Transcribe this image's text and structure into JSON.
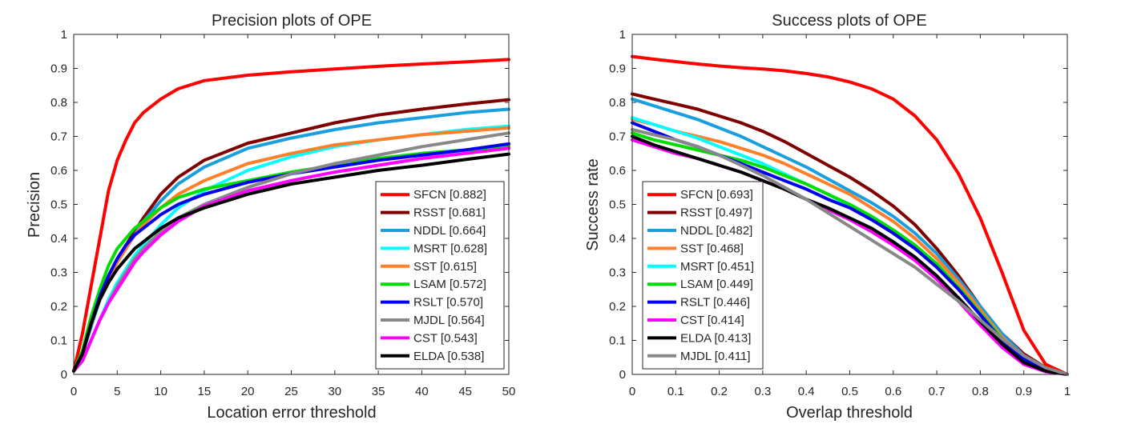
{
  "chart_data": [
    {
      "type": "line",
      "title": "Precision plots of OPE",
      "xlabel": "Location error threshold",
      "ylabel": "Precision",
      "xlim": [
        0,
        50
      ],
      "ylim": [
        0,
        1
      ],
      "xticks": [
        0,
        5,
        10,
        15,
        20,
        25,
        30,
        35,
        40,
        45,
        50
      ],
      "yticks": [
        0,
        0.1,
        0.2,
        0.3,
        0.4,
        0.5,
        0.6,
        0.7,
        0.8,
        0.9,
        1
      ],
      "grid": false,
      "legend_position": "bottom-right",
      "x": [
        0,
        1,
        2,
        3,
        4,
        5,
        6,
        7,
        8,
        10,
        12,
        15,
        20,
        25,
        30,
        35,
        40,
        45,
        50
      ],
      "series": [
        {
          "name": "SFCN [0.882]",
          "color": "#ff0000",
          "values": [
            0.01,
            0.12,
            0.26,
            0.4,
            0.54,
            0.63,
            0.69,
            0.74,
            0.77,
            0.81,
            0.84,
            0.864,
            0.88,
            0.89,
            0.898,
            0.906,
            0.913,
            0.919,
            0.926
          ]
        },
        {
          "name": "RSST [0.681]",
          "color": "#800000",
          "values": [
            0.01,
            0.06,
            0.15,
            0.23,
            0.29,
            0.34,
            0.38,
            0.42,
            0.46,
            0.53,
            0.58,
            0.63,
            0.68,
            0.71,
            0.74,
            0.763,
            0.78,
            0.795,
            0.808
          ]
        },
        {
          "name": "NDDL [0.664]",
          "color": "#1a9fde",
          "values": [
            0.01,
            0.06,
            0.14,
            0.22,
            0.28,
            0.33,
            0.37,
            0.41,
            0.45,
            0.51,
            0.56,
            0.61,
            0.665,
            0.695,
            0.72,
            0.74,
            0.755,
            0.77,
            0.78
          ]
        },
        {
          "name": "MSRT [0.628]",
          "color": "#00ffff",
          "values": [
            0.01,
            0.04,
            0.1,
            0.16,
            0.22,
            0.27,
            0.31,
            0.35,
            0.38,
            0.44,
            0.49,
            0.54,
            0.6,
            0.64,
            0.67,
            0.69,
            0.705,
            0.72,
            0.73
          ]
        },
        {
          "name": "SST [0.615]",
          "color": "#ff7f2a",
          "values": [
            0.01,
            0.06,
            0.15,
            0.22,
            0.28,
            0.33,
            0.37,
            0.41,
            0.44,
            0.49,
            0.53,
            0.57,
            0.62,
            0.65,
            0.675,
            0.69,
            0.705,
            0.715,
            0.725
          ]
        },
        {
          "name": "LSAM [0.572]",
          "color": "#00dd00",
          "values": [
            0.01,
            0.07,
            0.17,
            0.25,
            0.32,
            0.37,
            0.4,
            0.43,
            0.45,
            0.49,
            0.52,
            0.545,
            0.57,
            0.595,
            0.615,
            0.635,
            0.65,
            0.66,
            0.67
          ]
        },
        {
          "name": "RSLT [0.570]",
          "color": "#0000ee",
          "values": [
            0.01,
            0.06,
            0.15,
            0.23,
            0.29,
            0.34,
            0.38,
            0.41,
            0.43,
            0.47,
            0.5,
            0.53,
            0.565,
            0.59,
            0.61,
            0.63,
            0.645,
            0.66,
            0.678
          ]
        },
        {
          "name": "MJDL [0.564]",
          "color": "#888888",
          "values": [
            0.01,
            0.04,
            0.1,
            0.16,
            0.21,
            0.26,
            0.3,
            0.34,
            0.37,
            0.42,
            0.46,
            0.5,
            0.55,
            0.59,
            0.62,
            0.645,
            0.67,
            0.69,
            0.71
          ]
        },
        {
          "name": "CST [0.543]",
          "color": "#ff00ff",
          "values": [
            0.01,
            0.04,
            0.1,
            0.16,
            0.21,
            0.25,
            0.29,
            0.33,
            0.36,
            0.41,
            0.45,
            0.495,
            0.54,
            0.57,
            0.595,
            0.615,
            0.635,
            0.65,
            0.665
          ]
        },
        {
          "name": "ELDA [0.538]",
          "color": "#000000",
          "values": [
            0.01,
            0.06,
            0.15,
            0.22,
            0.27,
            0.31,
            0.34,
            0.37,
            0.39,
            0.43,
            0.46,
            0.49,
            0.53,
            0.56,
            0.58,
            0.6,
            0.615,
            0.632,
            0.648
          ]
        }
      ]
    },
    {
      "type": "line",
      "title": "Success plots of OPE",
      "xlabel": "Overlap threshold",
      "ylabel": "Success rate",
      "xlim": [
        0,
        1
      ],
      "ylim": [
        0,
        1
      ],
      "xticks": [
        0,
        0.1,
        0.2,
        0.3,
        0.4,
        0.5,
        0.6,
        0.7,
        0.8,
        0.9,
        1
      ],
      "yticks": [
        0,
        0.1,
        0.2,
        0.3,
        0.4,
        0.5,
        0.6,
        0.7,
        0.8,
        0.9,
        1
      ],
      "grid": false,
      "legend_position": "bottom-left",
      "x": [
        0,
        0.05,
        0.1,
        0.15,
        0.2,
        0.25,
        0.3,
        0.35,
        0.4,
        0.45,
        0.5,
        0.55,
        0.6,
        0.65,
        0.7,
        0.75,
        0.8,
        0.85,
        0.9,
        0.95,
        1
      ],
      "series": [
        {
          "name": "SFCN [0.693]",
          "color": "#ff0000",
          "values": [
            0.935,
            0.927,
            0.92,
            0.913,
            0.907,
            0.902,
            0.898,
            0.893,
            0.885,
            0.875,
            0.86,
            0.84,
            0.81,
            0.76,
            0.69,
            0.59,
            0.46,
            0.3,
            0.13,
            0.03,
            0.0
          ]
        },
        {
          "name": "RSST [0.497]",
          "color": "#800000",
          "values": [
            0.825,
            0.81,
            0.795,
            0.78,
            0.76,
            0.74,
            0.715,
            0.685,
            0.65,
            0.615,
            0.58,
            0.54,
            0.495,
            0.44,
            0.37,
            0.29,
            0.2,
            0.12,
            0.06,
            0.02,
            0.0
          ]
        },
        {
          "name": "NDDL [0.482]",
          "color": "#1a9fde",
          "values": [
            0.81,
            0.79,
            0.77,
            0.75,
            0.725,
            0.7,
            0.67,
            0.64,
            0.61,
            0.575,
            0.54,
            0.505,
            0.465,
            0.415,
            0.355,
            0.28,
            0.2,
            0.12,
            0.055,
            0.015,
            0.0
          ]
        },
        {
          "name": "SST [0.468]",
          "color": "#ff7f2a",
          "values": [
            0.75,
            0.735,
            0.715,
            0.7,
            0.685,
            0.665,
            0.645,
            0.62,
            0.59,
            0.56,
            0.53,
            0.49,
            0.45,
            0.4,
            0.34,
            0.27,
            0.19,
            0.11,
            0.05,
            0.015,
            0.0
          ]
        },
        {
          "name": "MSRT [0.451]",
          "color": "#00ffff",
          "values": [
            0.755,
            0.735,
            0.715,
            0.695,
            0.67,
            0.645,
            0.62,
            0.59,
            0.56,
            0.53,
            0.495,
            0.46,
            0.42,
            0.375,
            0.32,
            0.255,
            0.18,
            0.105,
            0.045,
            0.012,
            0.0
          ]
        },
        {
          "name": "LSAM [0.449]",
          "color": "#00dd00",
          "values": [
            0.71,
            0.69,
            0.675,
            0.66,
            0.645,
            0.63,
            0.61,
            0.585,
            0.56,
            0.53,
            0.5,
            0.465,
            0.425,
            0.38,
            0.325,
            0.255,
            0.18,
            0.105,
            0.045,
            0.012,
            0.0
          ]
        },
        {
          "name": "RSLT [0.446]",
          "color": "#0000ee",
          "values": [
            0.74,
            0.715,
            0.69,
            0.67,
            0.645,
            0.62,
            0.595,
            0.57,
            0.545,
            0.515,
            0.49,
            0.455,
            0.415,
            0.37,
            0.315,
            0.25,
            0.175,
            0.1,
            0.045,
            0.012,
            0.0
          ]
        },
        {
          "name": "CST [0.414]",
          "color": "#ff00ff",
          "values": [
            0.69,
            0.67,
            0.65,
            0.635,
            0.615,
            0.595,
            0.57,
            0.545,
            0.515,
            0.485,
            0.455,
            0.42,
            0.38,
            0.335,
            0.28,
            0.215,
            0.145,
            0.08,
            0.03,
            0.008,
            0.0
          ]
        },
        {
          "name": "ELDA [0.413]",
          "color": "#000000",
          "values": [
            0.7,
            0.675,
            0.655,
            0.635,
            0.615,
            0.595,
            0.57,
            0.545,
            0.515,
            0.49,
            0.46,
            0.43,
            0.39,
            0.345,
            0.29,
            0.225,
            0.155,
            0.09,
            0.035,
            0.01,
            0.0
          ]
        },
        {
          "name": "MJDL [0.411]",
          "color": "#888888",
          "values": [
            0.72,
            0.705,
            0.69,
            0.67,
            0.645,
            0.615,
            0.585,
            0.55,
            0.515,
            0.475,
            0.435,
            0.395,
            0.355,
            0.315,
            0.265,
            0.215,
            0.16,
            0.105,
            0.055,
            0.02,
            0.0
          ]
        }
      ]
    }
  ]
}
